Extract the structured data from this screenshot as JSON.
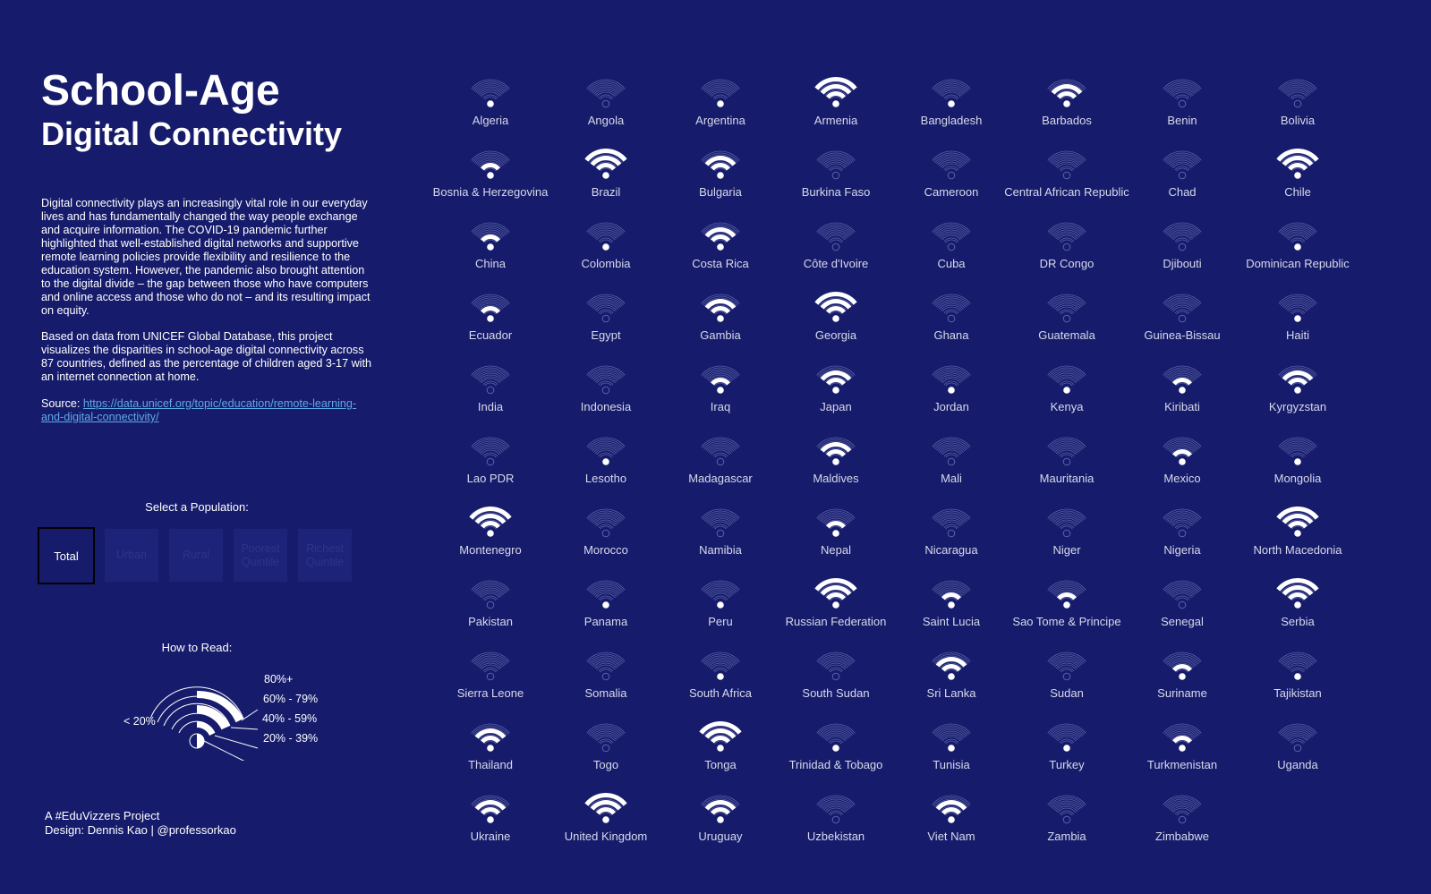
{
  "header": {
    "title_line1": "School-Age",
    "title_line2": "Digital Connectivity"
  },
  "description": {
    "paragraph1": "Digital connectivity plays an increasingly vital role in our everyday lives and has fundamentally changed the way people exchange and acquire information. The COVID-19 pandemic further highlighted that well-established digital networks and supportive remote learning policies provide flexibility and resilience to the education system. However, the pandemic also brought attention to the digital divide – the gap between those who have computers and online access and those who do not – and its resulting impact on equity.",
    "paragraph2": "Based on data from UNICEF Global Database, this project visualizes the disparities in school-age digital connectivity across 87 countries, defined as the percentage of children aged 3-17 with an internet connection at home.",
    "source_label": "Source: ",
    "source_link": "https://data.unicef.org/topic/education/remote-learning-and-digital-connectivity/"
  },
  "selector": {
    "label": "Select a Population:",
    "options": [
      "Total",
      "Urban",
      "Rural",
      "Poorest Quintile",
      "Richest Quintile"
    ],
    "active": "Total"
  },
  "how_to_read": {
    "label": "How to Read:",
    "levels": [
      "80%+",
      "60% - 79%",
      "40% - 59%",
      "20% - 39%",
      "< 20%"
    ]
  },
  "credit": {
    "line1": "A #EduVizzers Project",
    "line2": "Design: Dennis Kao | @professorkao"
  },
  "colors": {
    "background": "#161c6b",
    "icon_filled": "#ffffff",
    "icon_empty": "#5c63a8",
    "link": "#5fa8e8"
  },
  "chart_data": {
    "type": "table",
    "encoding": "level 0 = under 20%, 1 = 20-39%, 2 = 40-59%, 3 = 60-79%, 4 = 80%+",
    "countries": [
      {
        "name": "Algeria",
        "level": 1
      },
      {
        "name": "Angola",
        "level": 0
      },
      {
        "name": "Argentina",
        "level": 1
      },
      {
        "name": "Armenia",
        "level": 4
      },
      {
        "name": "Bangladesh",
        "level": 1
      },
      {
        "name": "Barbados",
        "level": 3
      },
      {
        "name": "Benin",
        "level": 0
      },
      {
        "name": "Bolivia",
        "level": 0
      },
      {
        "name": "Bosnia & Herzegovina",
        "level": 2
      },
      {
        "name": "Brazil",
        "level": 4
      },
      {
        "name": "Bulgaria",
        "level": 3
      },
      {
        "name": "Burkina Faso",
        "level": 0
      },
      {
        "name": "Cameroon",
        "level": 0
      },
      {
        "name": "Central African Republic",
        "level": 0
      },
      {
        "name": "Chad",
        "level": 0
      },
      {
        "name": "Chile",
        "level": 4
      },
      {
        "name": "China",
        "level": 2
      },
      {
        "name": "Colombia",
        "level": 1
      },
      {
        "name": "Costa Rica",
        "level": 3
      },
      {
        "name": "Côte d'Ivoire",
        "level": 0
      },
      {
        "name": "Cuba",
        "level": 0
      },
      {
        "name": "DR Congo",
        "level": 0
      },
      {
        "name": "Djibouti",
        "level": 0
      },
      {
        "name": "Dominican Republic",
        "level": 1
      },
      {
        "name": "Ecuador",
        "level": 2
      },
      {
        "name": "Egypt",
        "level": 0
      },
      {
        "name": "Gambia",
        "level": 3
      },
      {
        "name": "Georgia",
        "level": 4
      },
      {
        "name": "Ghana",
        "level": 0
      },
      {
        "name": "Guatemala",
        "level": 0
      },
      {
        "name": "Guinea-Bissau",
        "level": 0
      },
      {
        "name": "Haiti",
        "level": 1
      },
      {
        "name": "India",
        "level": 0
      },
      {
        "name": "Indonesia",
        "level": 0
      },
      {
        "name": "Iraq",
        "level": 2
      },
      {
        "name": "Japan",
        "level": 3
      },
      {
        "name": "Jordan",
        "level": 1
      },
      {
        "name": "Kenya",
        "level": 1
      },
      {
        "name": "Kiribati",
        "level": 2
      },
      {
        "name": "Kyrgyzstan",
        "level": 3
      },
      {
        "name": "Lao PDR",
        "level": 0
      },
      {
        "name": "Lesotho",
        "level": 1
      },
      {
        "name": "Madagascar",
        "level": 0
      },
      {
        "name": "Maldives",
        "level": 3
      },
      {
        "name": "Mali",
        "level": 0
      },
      {
        "name": "Mauritania",
        "level": 0
      },
      {
        "name": "Mexico",
        "level": 2
      },
      {
        "name": "Mongolia",
        "level": 1
      },
      {
        "name": "Montenegro",
        "level": 4
      },
      {
        "name": "Morocco",
        "level": 0
      },
      {
        "name": "Namibia",
        "level": 0
      },
      {
        "name": "Nepal",
        "level": 2
      },
      {
        "name": "Nicaragua",
        "level": 0
      },
      {
        "name": "Niger",
        "level": 0
      },
      {
        "name": "Nigeria",
        "level": 0
      },
      {
        "name": "North Macedonia",
        "level": 4
      },
      {
        "name": "Pakistan",
        "level": 0
      },
      {
        "name": "Panama",
        "level": 1
      },
      {
        "name": "Peru",
        "level": 1
      },
      {
        "name": "Russian Federation",
        "level": 4
      },
      {
        "name": "Saint Lucia",
        "level": 2
      },
      {
        "name": "Sao Tome & Principe",
        "level": 2
      },
      {
        "name": "Senegal",
        "level": 0
      },
      {
        "name": "Serbia",
        "level": 4
      },
      {
        "name": "Sierra Leone",
        "level": 0
      },
      {
        "name": "Somalia",
        "level": 0
      },
      {
        "name": "South Africa",
        "level": 1
      },
      {
        "name": "South Sudan",
        "level": 0
      },
      {
        "name": "Sri Lanka",
        "level": 3
      },
      {
        "name": "Sudan",
        "level": 0
      },
      {
        "name": "Suriname",
        "level": 2
      },
      {
        "name": "Tajikistan",
        "level": 1
      },
      {
        "name": "Thailand",
        "level": 3
      },
      {
        "name": "Togo",
        "level": 0
      },
      {
        "name": "Tonga",
        "level": 4
      },
      {
        "name": "Trinidad & Tobago",
        "level": 1
      },
      {
        "name": "Tunisia",
        "level": 1
      },
      {
        "name": "Turkey",
        "level": 1
      },
      {
        "name": "Turkmenistan",
        "level": 2
      },
      {
        "name": "Uganda",
        "level": 0
      },
      {
        "name": "Ukraine",
        "level": 3
      },
      {
        "name": "United Kingdom",
        "level": 4
      },
      {
        "name": "Uruguay",
        "level": 3
      },
      {
        "name": "Uzbekistan",
        "level": 0
      },
      {
        "name": "Viet Nam",
        "level": 3
      },
      {
        "name": "Zambia",
        "level": 0
      },
      {
        "name": "Zimbabwe",
        "level": 0
      }
    ]
  }
}
